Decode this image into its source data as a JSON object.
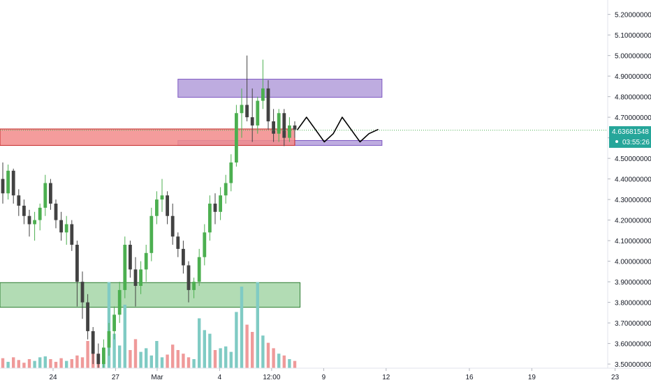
{
  "chart_data": {
    "type": "candlestick",
    "y_axis": {
      "ticks": [
        "5.20000000",
        "5.10000000",
        "5.00000000",
        "4.90000000",
        "4.80000000",
        "4.70000000",
        "4.60000000",
        "4.50000000",
        "4.40000000",
        "4.30000000",
        "4.20000000",
        "4.10000000",
        "4.00000000",
        "3.90000000",
        "3.80000000",
        "3.70000000",
        "3.60000000",
        "3.50000000"
      ],
      "range": [
        3.48,
        5.27
      ],
      "position": "right"
    },
    "x_axis": {
      "ticks": [
        {
          "label": "24",
          "day": 24
        },
        {
          "label": "27",
          "day": 27
        },
        {
          "label": "Mar",
          "day": 29
        },
        {
          "label": "4",
          "day": 32
        },
        {
          "label": "12:00",
          "day": 34.5
        },
        {
          "label": "9",
          "day": 37
        },
        {
          "label": "12",
          "day": 40
        },
        {
          "label": "16",
          "day": 44
        },
        {
          "label": "19",
          "day": 47
        },
        {
          "label": "23",
          "day": 51
        }
      ],
      "unit": "days (Feb 24 = 24, Mar 1 = 29)"
    },
    "last_price": {
      "value": "4.63681548",
      "countdown": "03:55:26",
      "numeric": 4.6368
    },
    "candles": [
      {
        "o": 4.4,
        "h": 4.48,
        "l": 4.28,
        "c": 4.33
      },
      {
        "o": 4.33,
        "h": 4.47,
        "l": 4.3,
        "c": 4.44
      },
      {
        "o": 4.44,
        "h": 4.45,
        "l": 4.28,
        "c": 4.32
      },
      {
        "o": 4.32,
        "h": 4.35,
        "l": 4.22,
        "c": 4.27
      },
      {
        "o": 4.27,
        "h": 4.3,
        "l": 4.18,
        "c": 4.22
      },
      {
        "o": 4.22,
        "h": 4.25,
        "l": 4.12,
        "c": 4.18
      },
      {
        "o": 4.18,
        "h": 4.24,
        "l": 4.1,
        "c": 4.2
      },
      {
        "o": 4.2,
        "h": 4.28,
        "l": 4.15,
        "c": 4.26
      },
      {
        "o": 4.26,
        "h": 4.42,
        "l": 4.22,
        "c": 4.38
      },
      {
        "o": 4.38,
        "h": 4.4,
        "l": 4.25,
        "c": 4.28
      },
      {
        "o": 4.28,
        "h": 4.3,
        "l": 4.16,
        "c": 4.2
      },
      {
        "o": 4.2,
        "h": 4.24,
        "l": 4.1,
        "c": 4.14
      },
      {
        "o": 4.14,
        "h": 4.22,
        "l": 4.08,
        "c": 4.18
      },
      {
        "o": 4.18,
        "h": 4.2,
        "l": 4.05,
        "c": 4.08
      },
      {
        "o": 4.08,
        "h": 4.1,
        "l": 3.78,
        "c": 3.9
      },
      {
        "o": 3.9,
        "h": 3.95,
        "l": 3.72,
        "c": 3.8
      },
      {
        "o": 3.8,
        "h": 3.84,
        "l": 3.62,
        "c": 3.66
      },
      {
        "o": 3.66,
        "h": 3.68,
        "l": 3.5,
        "c": 3.55
      },
      {
        "o": 3.55,
        "h": 3.6,
        "l": 3.48,
        "c": 3.5
      },
      {
        "o": 3.5,
        "h": 3.62,
        "l": 3.48,
        "c": 3.58
      },
      {
        "o": 3.58,
        "h": 3.7,
        "l": 3.54,
        "c": 3.66
      },
      {
        "o": 3.66,
        "h": 3.78,
        "l": 3.62,
        "c": 3.74
      },
      {
        "o": 3.74,
        "h": 3.9,
        "l": 3.7,
        "c": 3.86
      },
      {
        "o": 3.86,
        "h": 4.12,
        "l": 3.82,
        "c": 4.08
      },
      {
        "o": 4.08,
        "h": 4.1,
        "l": 3.92,
        "c": 3.96
      },
      {
        "o": 3.96,
        "h": 4.02,
        "l": 3.78,
        "c": 3.88
      },
      {
        "o": 3.88,
        "h": 4.0,
        "l": 3.84,
        "c": 3.96
      },
      {
        "o": 3.96,
        "h": 4.08,
        "l": 3.9,
        "c": 4.04
      },
      {
        "o": 4.04,
        "h": 4.26,
        "l": 4.0,
        "c": 4.22
      },
      {
        "o": 4.22,
        "h": 4.34,
        "l": 4.18,
        "c": 4.3
      },
      {
        "o": 4.3,
        "h": 4.4,
        "l": 4.24,
        "c": 4.32
      },
      {
        "o": 4.32,
        "h": 4.34,
        "l": 4.18,
        "c": 4.22
      },
      {
        "o": 4.22,
        "h": 4.28,
        "l": 4.08,
        "c": 4.12
      },
      {
        "o": 4.12,
        "h": 4.14,
        "l": 4.02,
        "c": 4.06
      },
      {
        "o": 4.06,
        "h": 4.1,
        "l": 3.94,
        "c": 3.98
      },
      {
        "o": 3.98,
        "h": 4.0,
        "l": 3.8,
        "c": 3.86
      },
      {
        "o": 3.86,
        "h": 3.92,
        "l": 3.82,
        "c": 3.9
      },
      {
        "o": 3.9,
        "h": 4.06,
        "l": 3.88,
        "c": 4.02
      },
      {
        "o": 4.02,
        "h": 4.18,
        "l": 3.98,
        "c": 4.14
      },
      {
        "o": 4.14,
        "h": 4.32,
        "l": 4.1,
        "c": 4.28
      },
      {
        "o": 4.28,
        "h": 4.33,
        "l": 4.18,
        "c": 4.24
      },
      {
        "o": 4.24,
        "h": 4.36,
        "l": 4.2,
        "c": 4.32
      },
      {
        "o": 4.32,
        "h": 4.42,
        "l": 4.28,
        "c": 4.38
      },
      {
        "o": 4.38,
        "h": 4.52,
        "l": 4.34,
        "c": 4.48
      },
      {
        "o": 4.48,
        "h": 4.76,
        "l": 4.46,
        "c": 4.72
      },
      {
        "o": 4.72,
        "h": 4.84,
        "l": 4.6,
        "c": 4.76
      },
      {
        "o": 4.76,
        "h": 5.0,
        "l": 4.68,
        "c": 4.7
      },
      {
        "o": 4.7,
        "h": 4.84,
        "l": 4.58,
        "c": 4.66
      },
      {
        "o": 4.66,
        "h": 4.8,
        "l": 4.62,
        "c": 4.78
      },
      {
        "o": 4.78,
        "h": 4.98,
        "l": 4.74,
        "c": 4.84
      },
      {
        "o": 4.84,
        "h": 4.88,
        "l": 4.64,
        "c": 4.68
      },
      {
        "o": 4.68,
        "h": 4.74,
        "l": 4.58,
        "c": 4.62
      },
      {
        "o": 4.62,
        "h": 4.74,
        "l": 4.58,
        "c": 4.72
      },
      {
        "o": 4.72,
        "h": 4.74,
        "l": 4.56,
        "c": 4.6
      },
      {
        "o": 4.6,
        "h": 4.7,
        "l": 4.58,
        "c": 4.66
      },
      {
        "o": 4.66,
        "h": 4.68,
        "l": 4.6,
        "c": 4.64
      }
    ],
    "volume": [
      0.11,
      0.07,
      0.12,
      0.09,
      0.06,
      0.1,
      0.08,
      0.12,
      0.13,
      0.1,
      0.07,
      0.11,
      0.08,
      0.1,
      0.14,
      0.12,
      0.3,
      0.4,
      0.16,
      0.12,
      0.95,
      0.38,
      0.25,
      0.7,
      0.2,
      0.32,
      0.18,
      0.22,
      0.14,
      0.3,
      0.12,
      0.15,
      0.26,
      0.2,
      0.16,
      0.12,
      0.1,
      0.55,
      0.42,
      0.38,
      0.2,
      0.22,
      0.24,
      0.18,
      0.62,
      0.9,
      0.48,
      0.4,
      0.95,
      0.36,
      0.28,
      0.22,
      0.16,
      0.14,
      0.1,
      0.08
    ],
    "zones": [
      {
        "name": "resistance-zone",
        "color": "#b39ddb",
        "stroke": "#7e57c2",
        "y_top": 4.885,
        "y_bottom": 4.797,
        "x_start_idx": 33,
        "x_end": 39.8
      },
      {
        "name": "support-zone-upper",
        "color": "#b39ddb",
        "stroke": "#7e57c2",
        "y_top": 4.587,
        "y_bottom": 4.563,
        "x_start_idx": 33,
        "x_end": 39.8
      },
      {
        "name": "red-zone",
        "color": "#f28b8b",
        "stroke": "#c62828",
        "y_top": 4.643,
        "y_bottom": 4.563,
        "x_start_idx": -2,
        "x_end_idx": 55
      },
      {
        "name": "demand-zone",
        "color": "#a5d6a7",
        "stroke": "#2e7d32",
        "y_top": 3.896,
        "y_bottom": 3.776,
        "x_start_idx": -2,
        "x_end_idx": 56
      }
    ],
    "projection": [
      4.64,
      4.7,
      4.64,
      4.58,
      4.62,
      4.7,
      4.64,
      4.58,
      4.62,
      4.64
    ],
    "colors": {
      "up": "#4caf50",
      "down": "#424242",
      "vol_up": "#80cbc4",
      "vol_down": "#ef9a9a",
      "price_tag": "#26a69a",
      "last_line": "#4caf50"
    }
  }
}
